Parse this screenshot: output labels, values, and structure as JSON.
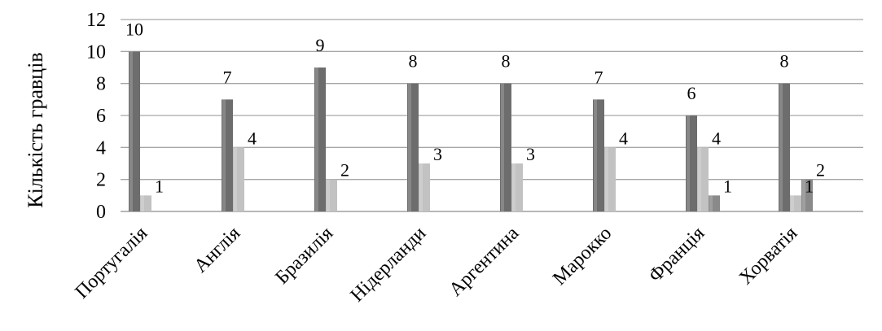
{
  "chart_data": {
    "type": "bar",
    "title": "",
    "xlabel": "",
    "ylabel": "Кількість гравців",
    "ylim": [
      0,
      12
    ],
    "yticks": [
      0,
      2,
      4,
      6,
      8,
      10,
      12
    ],
    "grid": true,
    "categories": [
      "Португалія",
      "Англія",
      "Бразилія",
      "Нідерланди",
      "Аргентина",
      "Марокко",
      "Франція",
      "Хорватія"
    ],
    "series": [
      {
        "values": [
          10,
          7,
          9,
          8,
          8,
          7,
          6,
          8
        ],
        "color": "#6d6d6d"
      },
      {
        "values": [
          1,
          4,
          2,
          3,
          3,
          4,
          4,
          1
        ],
        "color": "#c2c2c2"
      },
      {
        "values": [
          0,
          0,
          0,
          0,
          0,
          0,
          1,
          2
        ],
        "color": "#8a8a8a"
      }
    ]
  }
}
